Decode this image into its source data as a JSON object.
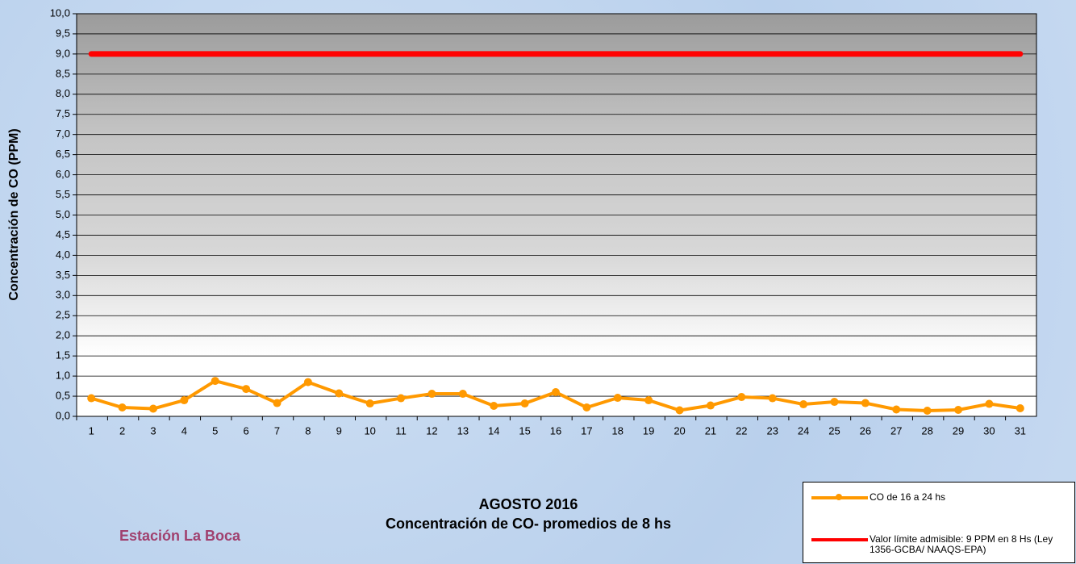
{
  "chart_data": {
    "type": "line",
    "title": "AGOSTO 2016",
    "subtitle": "Concentración de CO- promedios de 8 hs",
    "station": "Estación La Boca",
    "ylabel": "Concentración de CO (PPM)",
    "categories": [
      "1",
      "2",
      "3",
      "4",
      "5",
      "6",
      "7",
      "8",
      "9",
      "10",
      "11",
      "12",
      "13",
      "14",
      "15",
      "16",
      "17",
      "18",
      "19",
      "20",
      "21",
      "22",
      "23",
      "24",
      "25",
      "26",
      "27",
      "28",
      "29",
      "30",
      "31"
    ],
    "series": [
      {
        "name": "CO de 16 a 24 hs",
        "color": "#ff9900",
        "markers": true,
        "values": [
          0.45,
          0.22,
          0.19,
          0.4,
          0.88,
          0.68,
          0.33,
          0.85,
          0.57,
          0.32,
          0.45,
          0.56,
          0.56,
          0.26,
          0.32,
          0.6,
          0.22,
          0.46,
          0.4,
          0.15,
          0.27,
          0.48,
          0.45,
          0.3,
          0.36,
          0.33,
          0.17,
          0.14,
          0.16,
          0.31,
          0.2
        ]
      },
      {
        "name": "Valor límite admisible: 9 PPM en 8 Hs (Ley 1356-GCBA/ NAAQS-EPA)",
        "color": "#ff0000",
        "markers": false,
        "values": [
          9,
          9,
          9,
          9,
          9,
          9,
          9,
          9,
          9,
          9,
          9,
          9,
          9,
          9,
          9,
          9,
          9,
          9,
          9,
          9,
          9,
          9,
          9,
          9,
          9,
          9,
          9,
          9,
          9,
          9,
          9
        ]
      }
    ],
    "ylim": [
      0,
      10
    ],
    "yticks": [
      {
        "value": 0,
        "label": "0,0"
      },
      {
        "value": 0.5,
        "label": "0,5"
      },
      {
        "value": 1,
        "label": "1,0"
      },
      {
        "value": 1.5,
        "label": "1,5"
      },
      {
        "value": 2,
        "label": "2,0"
      },
      {
        "value": 2.5,
        "label": "2,5"
      },
      {
        "value": 3,
        "label": "3,0"
      },
      {
        "value": 3.5,
        "label": "3,5"
      },
      {
        "value": 4,
        "label": "4,0"
      },
      {
        "value": 4.5,
        "label": "4,5"
      },
      {
        "value": 5,
        "label": "5,0"
      },
      {
        "value": 5.5,
        "label": "5,5"
      },
      {
        "value": 6,
        "label": "6,0"
      },
      {
        "value": 6.5,
        "label": "6,5"
      },
      {
        "value": 7,
        "label": "7,0"
      },
      {
        "value": 7.5,
        "label": "7,5"
      },
      {
        "value": 8,
        "label": "8,0"
      },
      {
        "value": 8.5,
        "label": "8,5"
      },
      {
        "value": 9,
        "label": "9,0"
      },
      {
        "value": 9.5,
        "label": "9,5"
      },
      {
        "value": 10,
        "label": "10,0"
      }
    ],
    "grid": true
  }
}
